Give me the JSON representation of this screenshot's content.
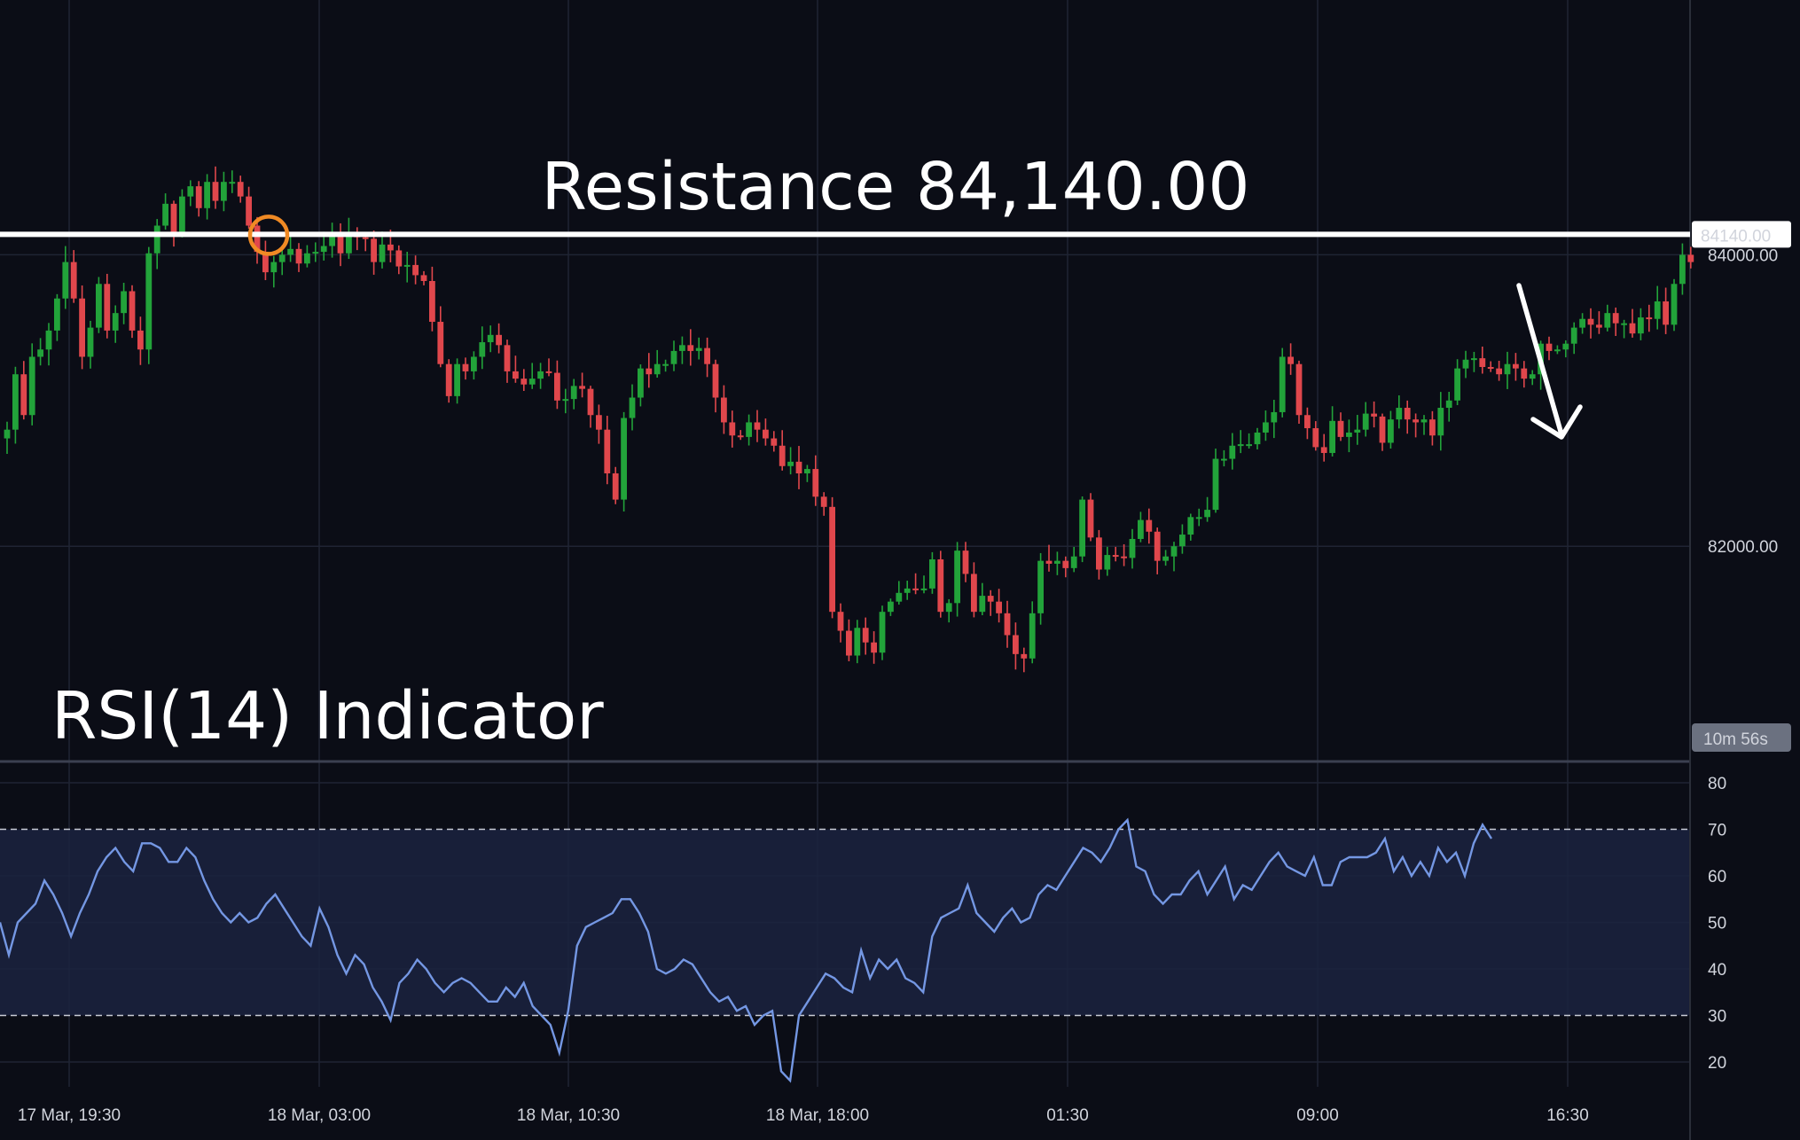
{
  "chart_data": [
    {
      "type": "candlestick",
      "title": "Resistance 84,140.00",
      "annotation": "Resistance 84,140.00",
      "resistance_label": "84140.00",
      "resistance": 84140,
      "price_ticks": [
        "84000.00",
        "82000.00"
      ],
      "price_tick_values": [
        84000,
        82000
      ],
      "countdown_label": "10m 56s",
      "x_ticks": [
        "17 Mar, 19:30",
        "18 Mar, 03:00",
        "18 Mar, 10:30",
        "18 Mar, 18:00",
        "01:30",
        "09:00",
        "16:30"
      ],
      "candle_interval_minutes": 15,
      "down_arrow": true,
      "closes": [
        82800,
        83180,
        82900,
        83300,
        83350,
        83480,
        83700,
        83950,
        83700,
        83300,
        83500,
        83800,
        83480,
        83600,
        83750,
        83480,
        83350,
        84010,
        84200,
        84350,
        84150,
        84400,
        84470,
        84320,
        84500,
        84370,
        84500,
        84500,
        84400,
        84200,
        84020,
        83880,
        83950,
        84000,
        84040,
        83940,
        84010,
        84020,
        84060,
        84130,
        84010,
        84150,
        84120,
        84110,
        83950,
        84070,
        84030,
        83920,
        83930,
        83860,
        83820,
        83540,
        83250,
        83030,
        83250,
        83200,
        83300,
        83400,
        83450,
        83380,
        83200,
        83150,
        83110,
        83150,
        83200,
        83190,
        83000,
        83010,
        83100,
        83080,
        82900,
        82800,
        82500,
        82320,
        82880,
        83020,
        83220,
        83180,
        83250,
        83250,
        83340,
        83380,
        83340,
        83360,
        83250,
        83020,
        82850,
        82760,
        82750,
        82850,
        82800,
        82740,
        82690,
        82550,
        82580,
        82500,
        82530,
        82340,
        82270,
        81550,
        81420,
        81250,
        81440,
        81340,
        81270,
        81550,
        81620,
        81680,
        81710,
        81700,
        81710,
        81910,
        81550,
        81610,
        81970,
        81810,
        81550,
        81660,
        81620,
        81540,
        81390,
        81260,
        81230,
        81540,
        81900,
        81880,
        81900,
        81850,
        81930,
        82320,
        82060,
        81840,
        81940,
        81930,
        81920,
        82050,
        82180,
        82100,
        81900,
        81930,
        82000,
        82080,
        82200,
        82200,
        82250,
        82600,
        82600,
        82690,
        82700,
        82700,
        82780,
        82850,
        82920,
        83300,
        83250,
        82900,
        82810,
        82680,
        82640,
        82860,
        82750,
        82780,
        82800,
        82910,
        82890,
        82710,
        82870,
        82950,
        82870,
        82850,
        82870,
        82760,
        82950,
        83000,
        83220,
        83280,
        83290,
        83230,
        83220,
        83180,
        83250,
        83220,
        83150,
        83180,
        83390,
        83340,
        83350,
        83390,
        83500,
        83560,
        83520,
        83500,
        83600,
        83530,
        83530,
        83460,
        83570,
        83560,
        83680,
        83520,
        83800,
        84000,
        83950
      ]
    },
    {
      "type": "line",
      "title": "RSI(14) Indicator",
      "annotation": "RSI(14) Indicator",
      "ylim": [
        15,
        85
      ],
      "y_ticks": [
        80,
        70,
        60,
        50,
        40,
        30,
        20
      ],
      "y_tick_labels": [
        "80",
        "70",
        "60",
        "50",
        "40",
        "30",
        "20"
      ],
      "overbought": 70,
      "oversold": 30,
      "series": [
        {
          "values": [
            50,
            43,
            50,
            52,
            54,
            59,
            56,
            52,
            47,
            52,
            56,
            61,
            64,
            66,
            63,
            61,
            67,
            67,
            66,
            63,
            63,
            66,
            64,
            59,
            55,
            52,
            50,
            52,
            50,
            51,
            54,
            56,
            53,
            50,
            47,
            45,
            53,
            49,
            43,
            39,
            43,
            41,
            36,
            33,
            29,
            37,
            39,
            42,
            40,
            37,
            35,
            37,
            38,
            37,
            35,
            33,
            33,
            36,
            34,
            37,
            32,
            30,
            28,
            22,
            31,
            45,
            49,
            50,
            51,
            52,
            55,
            55,
            52,
            48,
            40,
            39,
            40,
            42,
            41,
            38,
            35,
            33,
            34,
            31,
            32,
            28,
            30,
            31,
            18,
            16,
            30,
            33,
            36,
            39,
            38,
            36,
            35,
            44,
            38,
            42,
            40,
            42,
            38,
            37,
            35,
            47,
            51,
            52,
            53,
            58,
            52,
            50,
            48,
            51,
            53,
            50,
            51,
            56,
            58,
            57,
            60,
            63,
            66,
            65,
            63,
            66,
            70,
            72,
            62,
            61,
            56,
            54,
            56,
            56,
            59,
            61,
            56,
            59,
            62,
            55,
            58,
            57,
            60,
            63,
            65,
            62,
            61,
            60,
            64,
            58,
            58,
            63,
            64,
            64,
            64,
            65,
            68,
            61,
            64,
            60,
            63,
            60,
            66,
            63,
            65,
            60,
            67,
            71,
            68
          ]
        }
      ]
    }
  ]
}
